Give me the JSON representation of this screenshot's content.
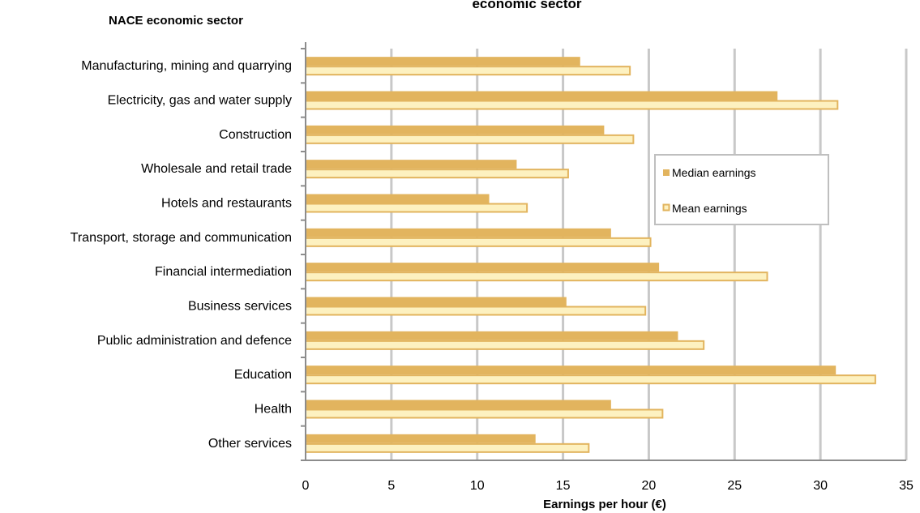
{
  "chart_data": {
    "type": "bar",
    "orientation": "horizontal",
    "title": "economic sector",
    "category_axis_title": "NACE economic sector",
    "xlabel": "Earnings per hour (€)",
    "xlim": [
      0,
      35
    ],
    "xticks": [
      0,
      5,
      10,
      15,
      20,
      25,
      30,
      35
    ],
    "grid": true,
    "legend_position": "right",
    "categories": [
      "Manufacturing, mining and quarrying",
      "Electricity, gas and water supply",
      "Construction",
      "Wholesale and retail trade",
      "Hotels and restaurants",
      "Transport, storage and communication",
      "Financial intermediation",
      "Business services",
      "Public administration and defence",
      "Education",
      "Health",
      "Other services"
    ],
    "series": [
      {
        "name": "Median earnings",
        "color": "#E2B45E",
        "values": [
          16.0,
          27.5,
          17.4,
          12.3,
          10.7,
          17.8,
          20.6,
          15.2,
          21.7,
          30.9,
          17.8,
          13.4
        ]
      },
      {
        "name": "Mean earnings",
        "color": "#FDF1C0",
        "stroke": "#E2B45E",
        "values": [
          18.9,
          31.0,
          19.1,
          15.3,
          12.9,
          20.1,
          26.9,
          19.8,
          23.2,
          33.2,
          20.8,
          16.5
        ]
      }
    ]
  }
}
